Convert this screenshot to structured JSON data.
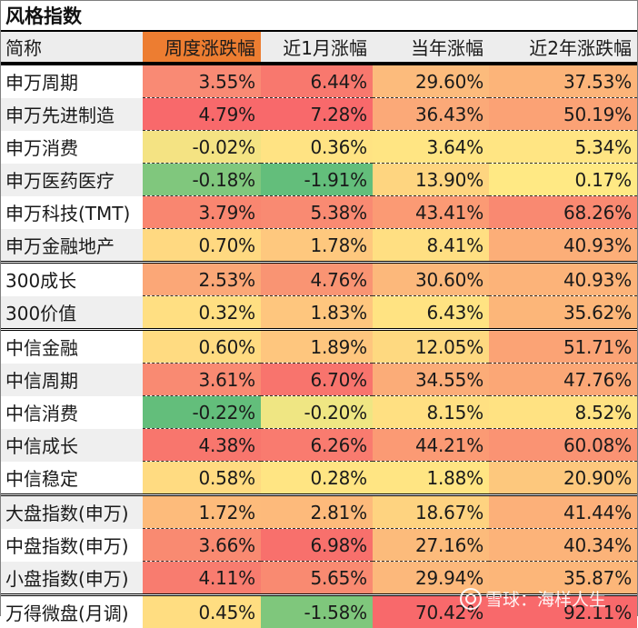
{
  "sheet": {
    "title": "风格指数",
    "header_color": "#ed7d31",
    "columns": [
      "简称",
      "周度涨跌幅",
      "近1月涨幅",
      "当年涨幅",
      "近2年涨跌幅"
    ],
    "rows": [
      {
        "name": "申万周期",
        "values": [
          "3.55%",
          "6.44%",
          "29.60%",
          "37.53%"
        ],
        "colors": [
          "#f98a74",
          "#f8786e",
          "#fcbb7c",
          "#fcb479"
        ]
      },
      {
        "name": "申万先进制造",
        "values": [
          "4.79%",
          "7.28%",
          "36.43%",
          "50.19%"
        ],
        "colors": [
          "#f8696b",
          "#f8696b",
          "#fba978",
          "#fba275"
        ]
      },
      {
        "name": "申万消费",
        "values": [
          "-0.02%",
          "0.36%",
          "3.64%",
          "5.34%"
        ],
        "colors": [
          "#f4e383",
          "#ffe383",
          "#ffe583",
          "#ffe583"
        ]
      },
      {
        "name": "申万医药医疗",
        "values": [
          "-0.18%",
          "-1.91%",
          "13.90%",
          "0.17%"
        ],
        "colors": [
          "#80c77d",
          "#63be7b",
          "#fed580",
          "#ffe984"
        ]
      },
      {
        "name": "申万科技(TMT)",
        "values": [
          "3.79%",
          "5.38%",
          "43.41%",
          "68.26%"
        ],
        "colors": [
          "#f98670",
          "#f98a72",
          "#fb9a74",
          "#f98971"
        ]
      },
      {
        "name": "申万金融地产",
        "values": [
          "0.70%",
          "1.78%",
          "8.41%",
          "40.93%"
        ],
        "colors": [
          "#ffd981",
          "#fec87e",
          "#ffdf82",
          "#fcae78"
        ]
      },
      {
        "name": "300成长",
        "values": [
          "2.53%",
          "4.76%",
          "30.60%",
          "40.93%"
        ],
        "colors": [
          "#fba777",
          "#f99473",
          "#fcb87b",
          "#fcb379"
        ]
      },
      {
        "name": "300价值",
        "values": [
          "0.32%",
          "1.83%",
          "6.43%",
          "35.62%"
        ],
        "colors": [
          "#ffdf82",
          "#fec67e",
          "#ffe382",
          "#fcb679"
        ]
      },
      {
        "name": "中信金融",
        "values": [
          "0.60%",
          "1.89%",
          "12.05%",
          "51.71%"
        ],
        "colors": [
          "#ffdb81",
          "#fec67e",
          "#fed980",
          "#fba375"
        ]
      },
      {
        "name": "中信周期",
        "values": [
          "3.61%",
          "6.70%",
          "34.55%",
          "47.76%"
        ],
        "colors": [
          "#f98a72",
          "#f8746d",
          "#fbac78",
          "#fba776"
        ]
      },
      {
        "name": "中信消费",
        "values": [
          "-0.22%",
          "-0.20%",
          "8.15%",
          "8.52%"
        ],
        "colors": [
          "#63be7b",
          "#efe683",
          "#ffe082",
          "#ffe282"
        ]
      },
      {
        "name": "中信成长",
        "values": [
          "4.38%",
          "6.26%",
          "44.21%",
          "60.08%"
        ],
        "colors": [
          "#f8766d",
          "#f97b6f",
          "#fb9a74",
          "#fa9373"
        ]
      },
      {
        "name": "中信稳定",
        "values": [
          "0.58%",
          "0.28%",
          "1.88%",
          "20.90%"
        ],
        "colors": [
          "#ffdb81",
          "#ffe583",
          "#ffe583",
          "#fdc87d"
        ]
      },
      {
        "name": "大盘指数(申万)",
        "values": [
          "1.72%",
          "2.81%",
          "18.67%",
          "41.44%"
        ],
        "colors": [
          "#fdbb7b",
          "#fdba7b",
          "#fed380",
          "#fcb079"
        ]
      },
      {
        "name": "中盘指数(申万)",
        "values": [
          "3.66%",
          "6.98%",
          "27.16%",
          "40.34%"
        ],
        "colors": [
          "#f98a71",
          "#f8706c",
          "#fcbb7b",
          "#fcb379"
        ]
      },
      {
        "name": "小盘指数(申万)",
        "values": [
          "4.11%",
          "5.65%",
          "29.94%",
          "35.87%"
        ],
        "colors": [
          "#f87c6f",
          "#f98a71",
          "#fcb87b",
          "#fcb679"
        ]
      },
      {
        "name": "万得微盘(月调)",
        "values": [
          "0.45%",
          "-1.58%",
          "70.42%",
          "92.11%"
        ],
        "colors": [
          "#ffdd81",
          "#7fc77c",
          "#f8696b",
          "#f8696b"
        ]
      }
    ]
  },
  "watermark": {
    "text": "雪球：海样人生"
  }
}
